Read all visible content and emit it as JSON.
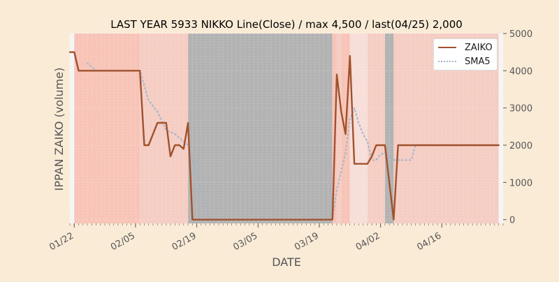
{
  "chart_data": {
    "type": "line",
    "title": "LAST YEAR 5933 NIKKO Line(Close) / max 4,500 / last(04/25) 2,000",
    "xlabel": "DATE",
    "ylabel": "IPPAN ZAIKO (volume)",
    "ylim": [
      -100,
      5000
    ],
    "yticks": [
      0,
      1000,
      2000,
      3000,
      4000,
      5000
    ],
    "ytick_labels": [
      "0",
      "1000",
      "2000",
      "3000",
      "4000",
      "5000"
    ],
    "y_axis_side": "right",
    "xticks": [
      "2022-01-22",
      "2022-02-05",
      "2022-02-19",
      "2022-03-05",
      "2022-03-19",
      "2022-04-02",
      "2022-04-16"
    ],
    "xtick_labels": [
      "01/22",
      "02/05",
      "02/19",
      "03/05",
      "03/19",
      "04/02",
      "04/16"
    ],
    "xlim": [
      "2022-01-21",
      "2022-04-30"
    ],
    "grid": true,
    "legend_position": "top-right",
    "series": [
      {
        "name": "ZAIKO",
        "color": "#a0522d",
        "style": "solid",
        "points": [
          [
            "2022-01-21",
            4500
          ],
          [
            "2022-01-22",
            4500
          ],
          [
            "2022-01-23",
            4000
          ],
          [
            "2022-02-06",
            4000
          ],
          [
            "2022-02-07",
            2000
          ],
          [
            "2022-02-08",
            2000
          ],
          [
            "2022-02-10",
            2600
          ],
          [
            "2022-02-12",
            2600
          ],
          [
            "2022-02-13",
            1700
          ],
          [
            "2022-02-14",
            2000
          ],
          [
            "2022-02-15",
            2000
          ],
          [
            "2022-02-16",
            1900
          ],
          [
            "2022-02-17",
            2600
          ],
          [
            "2022-02-18",
            0
          ],
          [
            "2022-03-22",
            0
          ],
          [
            "2022-03-23",
            3900
          ],
          [
            "2022-03-24",
            2900
          ],
          [
            "2022-03-25",
            2300
          ],
          [
            "2022-03-26",
            4400
          ],
          [
            "2022-03-27",
            1500
          ],
          [
            "2022-03-30",
            1500
          ],
          [
            "2022-03-31",
            1700
          ],
          [
            "2022-04-01",
            2000
          ],
          [
            "2022-04-03",
            2000
          ],
          [
            "2022-04-05",
            0
          ],
          [
            "2022-04-06",
            2000
          ],
          [
            "2022-04-29",
            2000
          ]
        ]
      },
      {
        "name": "SMA5",
        "color": "#9fb6cd",
        "style": "dotted",
        "points": [
          [
            "2022-01-25",
            4200
          ],
          [
            "2022-01-26",
            4100
          ],
          [
            "2022-01-27",
            4000
          ],
          [
            "2022-02-06",
            4000
          ],
          [
            "2022-02-07",
            3600
          ],
          [
            "2022-02-08",
            3200
          ],
          [
            "2022-02-10",
            2900
          ],
          [
            "2022-02-12",
            2400
          ],
          [
            "2022-02-14",
            2300
          ],
          [
            "2022-02-16",
            2100
          ],
          [
            "2022-02-17",
            2000
          ],
          [
            "2022-02-18",
            1600
          ],
          [
            "2022-02-19",
            1200
          ],
          [
            "2022-02-20",
            800
          ],
          [
            "2022-02-21",
            400
          ],
          [
            "2022-02-22",
            0
          ],
          [
            "2022-03-22",
            0
          ],
          [
            "2022-03-23",
            800
          ],
          [
            "2022-03-24",
            1300
          ],
          [
            "2022-03-25",
            1800
          ],
          [
            "2022-03-26",
            2700
          ],
          [
            "2022-03-27",
            3000
          ],
          [
            "2022-03-28",
            2600
          ],
          [
            "2022-03-29",
            2300
          ],
          [
            "2022-03-30",
            2100
          ],
          [
            "2022-03-31",
            1600
          ],
          [
            "2022-04-01",
            1600
          ],
          [
            "2022-04-02",
            1750
          ],
          [
            "2022-04-03",
            1800
          ],
          [
            "2022-04-04",
            1700
          ],
          [
            "2022-04-05",
            1600
          ],
          [
            "2022-04-06",
            1600
          ],
          [
            "2022-04-09",
            1600
          ],
          [
            "2022-04-10",
            2000
          ],
          [
            "2022-04-29",
            2000
          ]
        ]
      }
    ],
    "shaded_spans": [
      {
        "start": "2022-01-21",
        "end": "2022-01-22",
        "color": "#f5f5f5"
      },
      {
        "start": "2022-01-22",
        "end": "2022-02-06",
        "color": "#f8c4b8"
      },
      {
        "start": "2022-02-06",
        "end": "2022-02-17",
        "color": "#f5cdc3"
      },
      {
        "start": "2022-02-17",
        "end": "2022-03-22",
        "color": "#b3b3b3"
      },
      {
        "start": "2022-03-22",
        "end": "2022-03-23",
        "color": "#f8c4b8"
      },
      {
        "start": "2022-03-23",
        "end": "2022-03-24",
        "color": "#f5cdc3"
      },
      {
        "start": "2022-03-24",
        "end": "2022-03-26",
        "color": "#f8c4b8"
      },
      {
        "start": "2022-03-26",
        "end": "2022-03-30",
        "color": "#f7ded8"
      },
      {
        "start": "2022-03-30",
        "end": "2022-04-03",
        "color": "#f5cdc3"
      },
      {
        "start": "2022-04-03",
        "end": "2022-04-05",
        "color": "#b3b3b3"
      },
      {
        "start": "2022-04-05",
        "end": "2022-04-29",
        "color": "#f5cdc3"
      },
      {
        "start": "2022-04-29",
        "end": "2022-04-30",
        "color": "#f5f5f5"
      }
    ]
  }
}
